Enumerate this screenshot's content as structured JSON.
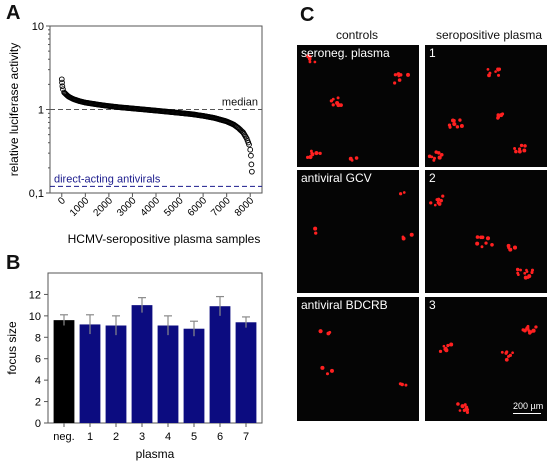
{
  "panel_labels": {
    "a": "A",
    "b": "B",
    "c": "C"
  },
  "chart_data": [
    {
      "type": "scatter",
      "xlabel": "HCMV-seropositive plasma samples",
      "ylabel": "relative luciferase activity",
      "scale_y": "log",
      "ylim": [
        0.1,
        10
      ],
      "xlim": [
        -500,
        8500
      ],
      "x_ticks": [
        0,
        1000,
        2000,
        3000,
        4000,
        5000,
        6000,
        7000,
        8000
      ],
      "y_ticks": [
        {
          "value": 0.1,
          "label": "0,1"
        },
        {
          "value": 1,
          "label": "1"
        },
        {
          "value": 10,
          "label": "10"
        }
      ],
      "reference_lines": [
        {
          "name": "median",
          "value": 1.0,
          "color": "#555555"
        },
        {
          "name": "direct-acting antivirals",
          "value": 0.12,
          "color": "#1a1a8c"
        }
      ],
      "points": [
        [
          0,
          2.3
        ],
        [
          10,
          2.1
        ],
        [
          25,
          1.9
        ],
        [
          50,
          1.75
        ],
        [
          100,
          1.6
        ],
        [
          200,
          1.5
        ],
        [
          300,
          1.42
        ],
        [
          500,
          1.33
        ],
        [
          750,
          1.26
        ],
        [
          1000,
          1.21
        ],
        [
          1500,
          1.15
        ],
        [
          2000,
          1.1
        ],
        [
          2500,
          1.06
        ],
        [
          3000,
          1.03
        ],
        [
          3500,
          1.0
        ],
        [
          4000,
          0.97
        ],
        [
          4500,
          0.94
        ],
        [
          5000,
          0.91
        ],
        [
          5500,
          0.88
        ],
        [
          6000,
          0.84
        ],
        [
          6500,
          0.79
        ],
        [
          7000,
          0.72
        ],
        [
          7300,
          0.66
        ],
        [
          7500,
          0.6
        ],
        [
          7700,
          0.53
        ],
        [
          7850,
          0.45
        ],
        [
          7950,
          0.38
        ],
        [
          8000,
          0.33
        ],
        [
          8030,
          0.28
        ],
        [
          8050,
          0.22
        ],
        [
          8070,
          0.18
        ]
      ],
      "grid": false
    },
    {
      "type": "bar",
      "categories": [
        "neg.",
        "1",
        "2",
        "3",
        "4",
        "5",
        "6",
        "7"
      ],
      "values": [
        9.6,
        9.2,
        9.1,
        11.0,
        9.1,
        8.8,
        10.9,
        9.4
      ],
      "errors": [
        0.5,
        0.9,
        0.9,
        0.7,
        0.9,
        0.7,
        0.9,
        0.5
      ],
      "colors": [
        "#000000",
        "#0c0c80",
        "#0c0c80",
        "#0c0c80",
        "#0c0c80",
        "#0c0c80",
        "#0c0c80",
        "#0c0c80"
      ],
      "xlabel": "plasma",
      "ylabel": "focus size",
      "ylim": [
        0,
        14
      ],
      "y_ticks": [
        0,
        2,
        4,
        6,
        8,
        10,
        12
      ],
      "grid": false
    }
  ],
  "panel_c": {
    "column_headers": [
      "controls",
      "seropositive plasma"
    ],
    "rows": [
      {
        "left": "seroneg. plasma",
        "right": "1"
      },
      {
        "left": "antiviral GCV",
        "right": "2"
      },
      {
        "left": "antiviral BDCRB",
        "right": "3"
      }
    ],
    "scale_bar": "200 µm",
    "cell_color": "#ff2020"
  }
}
